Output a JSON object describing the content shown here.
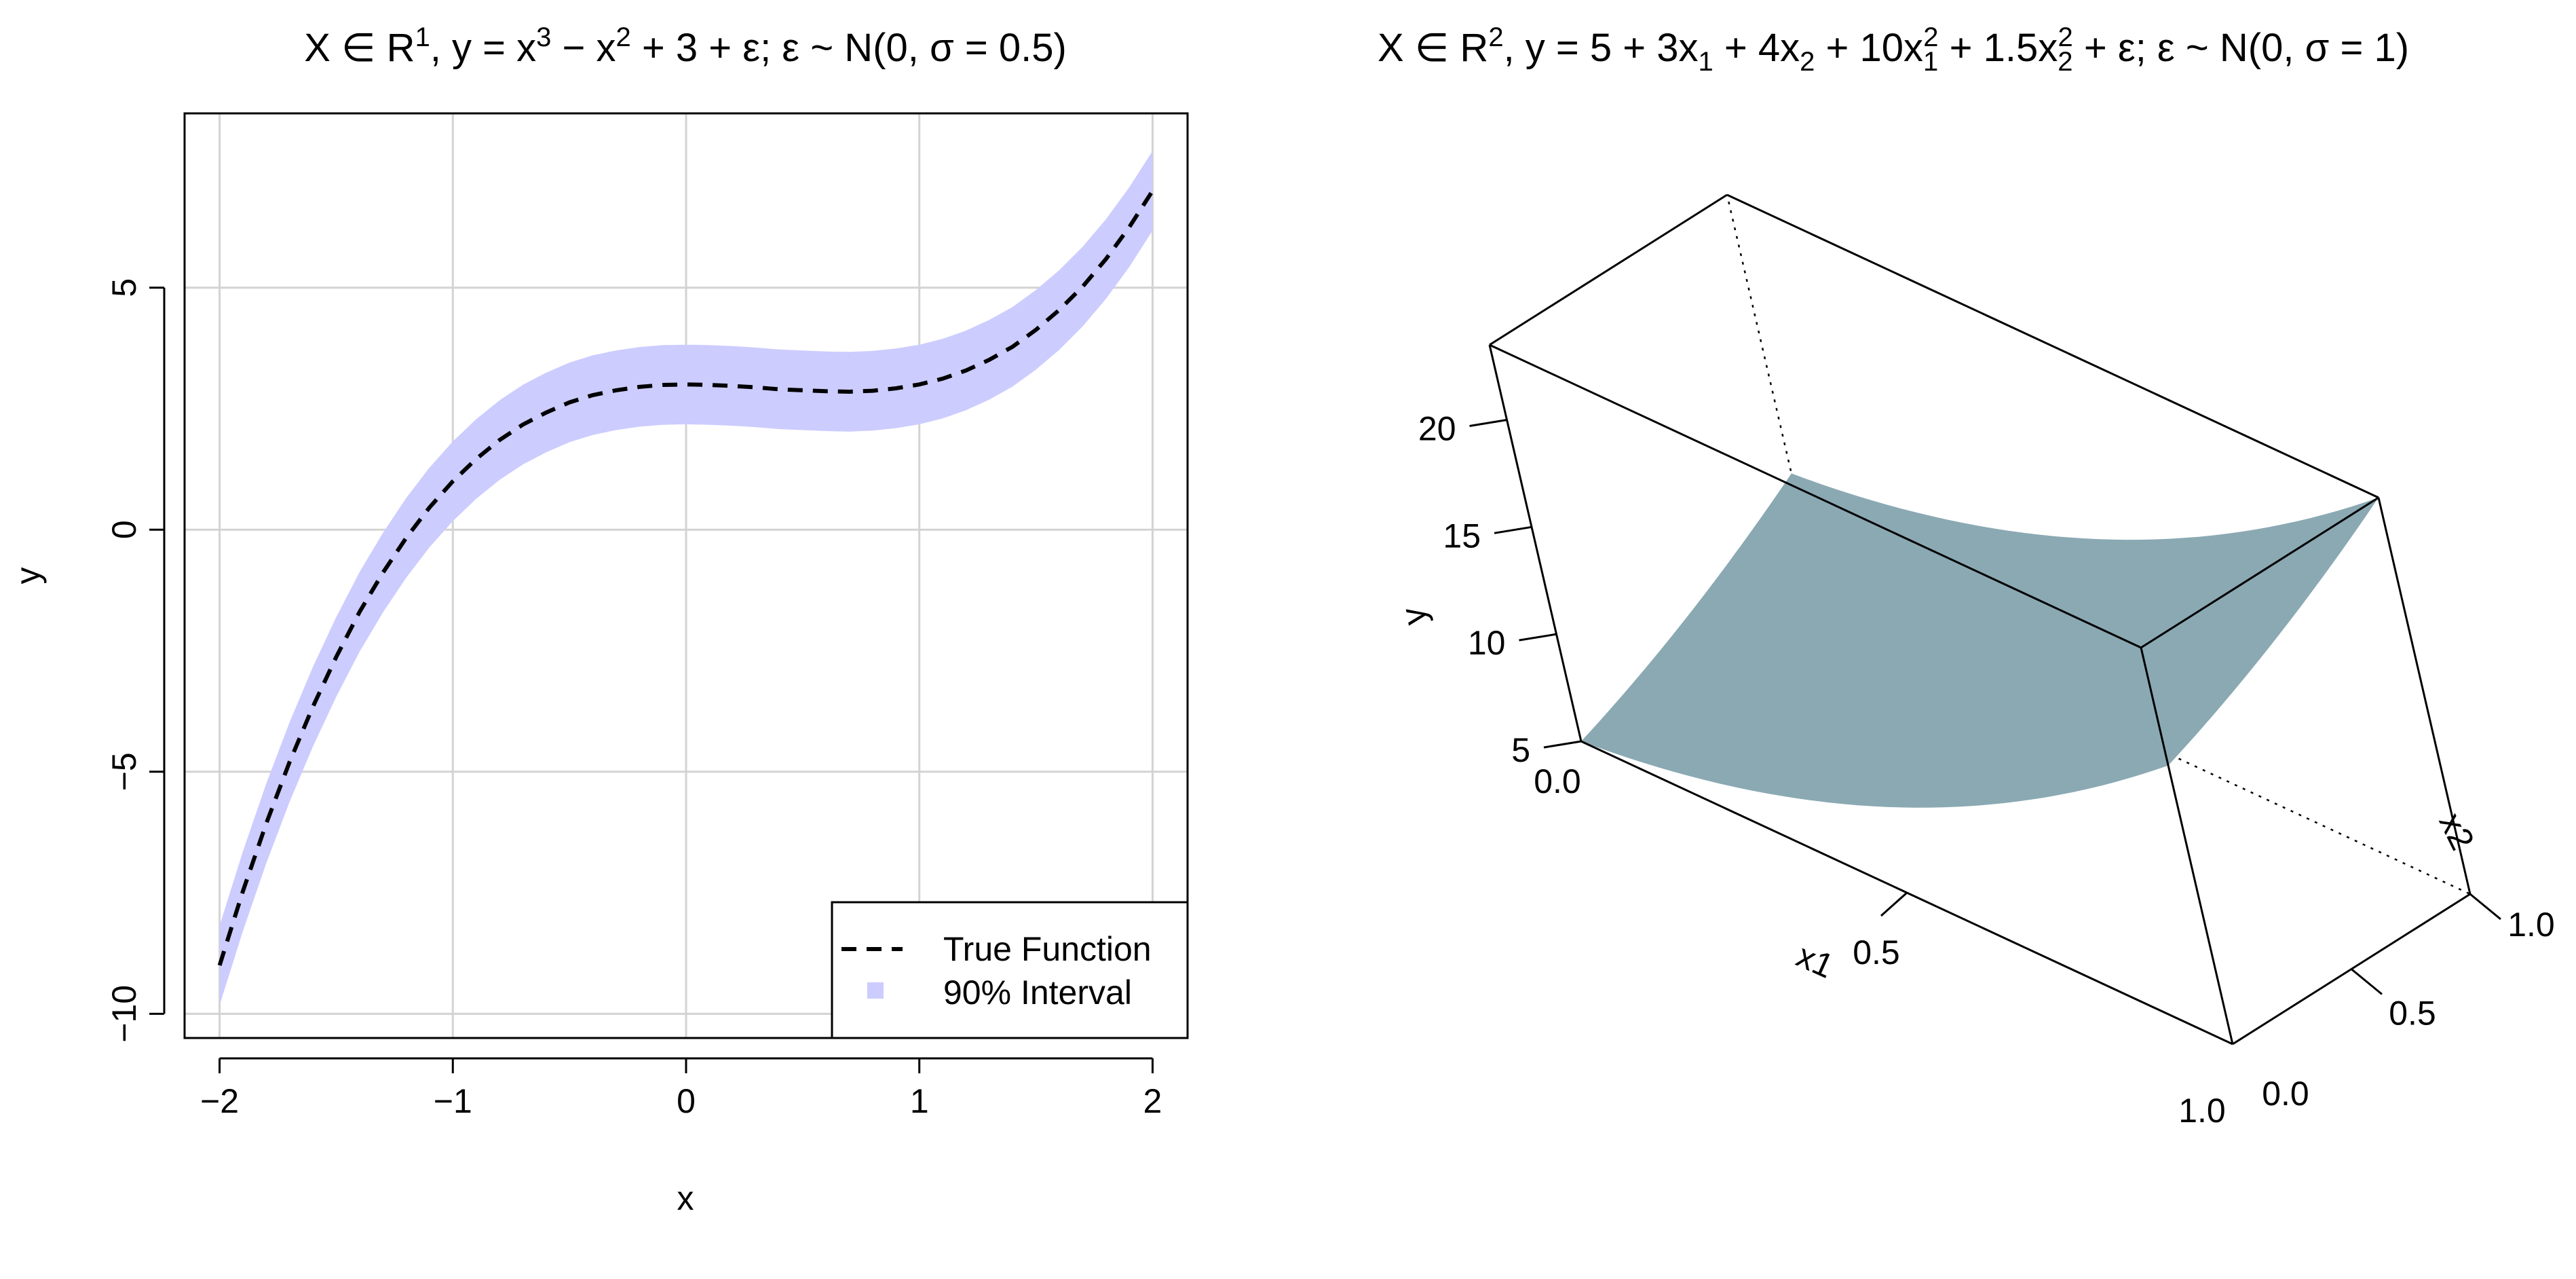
{
  "colors": {
    "band": "#ccccff",
    "line": "#000000",
    "grid": "#d3d3d3",
    "surface": "#8aa9b3"
  },
  "chart_data": [
    {
      "type": "line",
      "title": {
        "lhs": "X",
        "member": "∈",
        "space": "R",
        "space_sup": "1",
        "eq": "y = x",
        "pow3": "3",
        "minus": " − x",
        "pow2": "2",
        "rest": " + 3 + ε;  ε ~ N(0, σ = 0.5)"
      },
      "xlabel": "x",
      "ylabel": "y",
      "xlim": [
        -2.15,
        2.15
      ],
      "ylim": [
        -10.5,
        8.6
      ],
      "x_ticks": [
        -2,
        -1,
        0,
        1,
        2
      ],
      "x_tick_labels": [
        "−2",
        "−1",
        "0",
        "1",
        "2"
      ],
      "y_ticks": [
        -10,
        -5,
        0,
        5
      ],
      "y_tick_labels": [
        "−10",
        "−5",
        "0",
        "5"
      ],
      "grid": true,
      "series": [
        {
          "name": "True Function",
          "style": "dashed",
          "x": [
            -2.0,
            -1.9,
            -1.8,
            -1.7,
            -1.6,
            -1.5,
            -1.4,
            -1.3,
            -1.2,
            -1.1,
            -1.0,
            -0.9,
            -0.8,
            -0.7,
            -0.6,
            -0.5,
            -0.4,
            -0.3,
            -0.2,
            -0.1,
            0.0,
            0.1,
            0.2,
            0.3,
            0.4,
            0.5,
            0.6,
            0.7,
            0.8,
            0.9,
            1.0,
            1.1,
            1.2,
            1.3,
            1.4,
            1.5,
            1.6,
            1.7,
            1.8,
            1.9,
            2.0
          ],
          "y": [
            -9.0,
            -7.47,
            -6.07,
            -4.8,
            -3.66,
            -2.63,
            -1.7,
            -0.89,
            -0.17,
            0.46,
            1.0,
            1.46,
            1.85,
            2.17,
            2.42,
            2.63,
            2.78,
            2.88,
            2.95,
            2.99,
            3.0,
            2.99,
            2.97,
            2.94,
            2.9,
            2.88,
            2.86,
            2.85,
            2.87,
            2.92,
            3.0,
            3.12,
            3.29,
            3.51,
            3.78,
            4.13,
            4.54,
            5.02,
            5.59,
            6.25,
            7.0
          ]
        }
      ],
      "band": {
        "name": "90% Interval",
        "half_width": 0.8225
      },
      "legend": {
        "position": "bottom-right",
        "entries": [
          "True Function",
          "90% Interval"
        ]
      }
    },
    {
      "type": "surface3d",
      "title": {
        "lhs": "X",
        "member": "∈",
        "space": "R",
        "space_sup": "2",
        "eq1": "y = 5 + 3x",
        "sub1": "1",
        "eq2": " + 4x",
        "sub2": "2",
        "eq3": " + 10x",
        "sub3": "1",
        "sup3": "2",
        "eq4": " + 1.5x",
        "sub4": "2",
        "sup4": "2",
        "eq5": " + ε;  ε ~ N(0, σ = 1)"
      },
      "xlabel": "x1",
      "ylabel": "x2",
      "zlabel": "y",
      "x_range": [
        0,
        1
      ],
      "y_range": [
        0,
        1
      ],
      "z_range": [
        5,
        23.5
      ],
      "x_ticks": [
        0.0,
        0.5,
        1.0
      ],
      "x_tick_labels": [
        "0.0",
        "0.5",
        "1.0"
      ],
      "y_ticks": [
        0.0,
        0.5,
        1.0
      ],
      "y_tick_labels": [
        "0.0",
        "0.5",
        "1.0"
      ],
      "z_ticks": [
        5,
        10,
        15,
        20
      ],
      "z_tick_labels": [
        "5",
        "10",
        "15",
        "20"
      ],
      "function": "y = 5 + 3*x1 + 4*x2 + 10*x1^2 + 1.5*x2^2",
      "corner_values": {
        "x1_0_x2_0": 5.0,
        "x1_1_x2_0": 18.0,
        "x1_0_x2_1": 10.5,
        "x1_1_x2_1": 23.5
      }
    }
  ]
}
